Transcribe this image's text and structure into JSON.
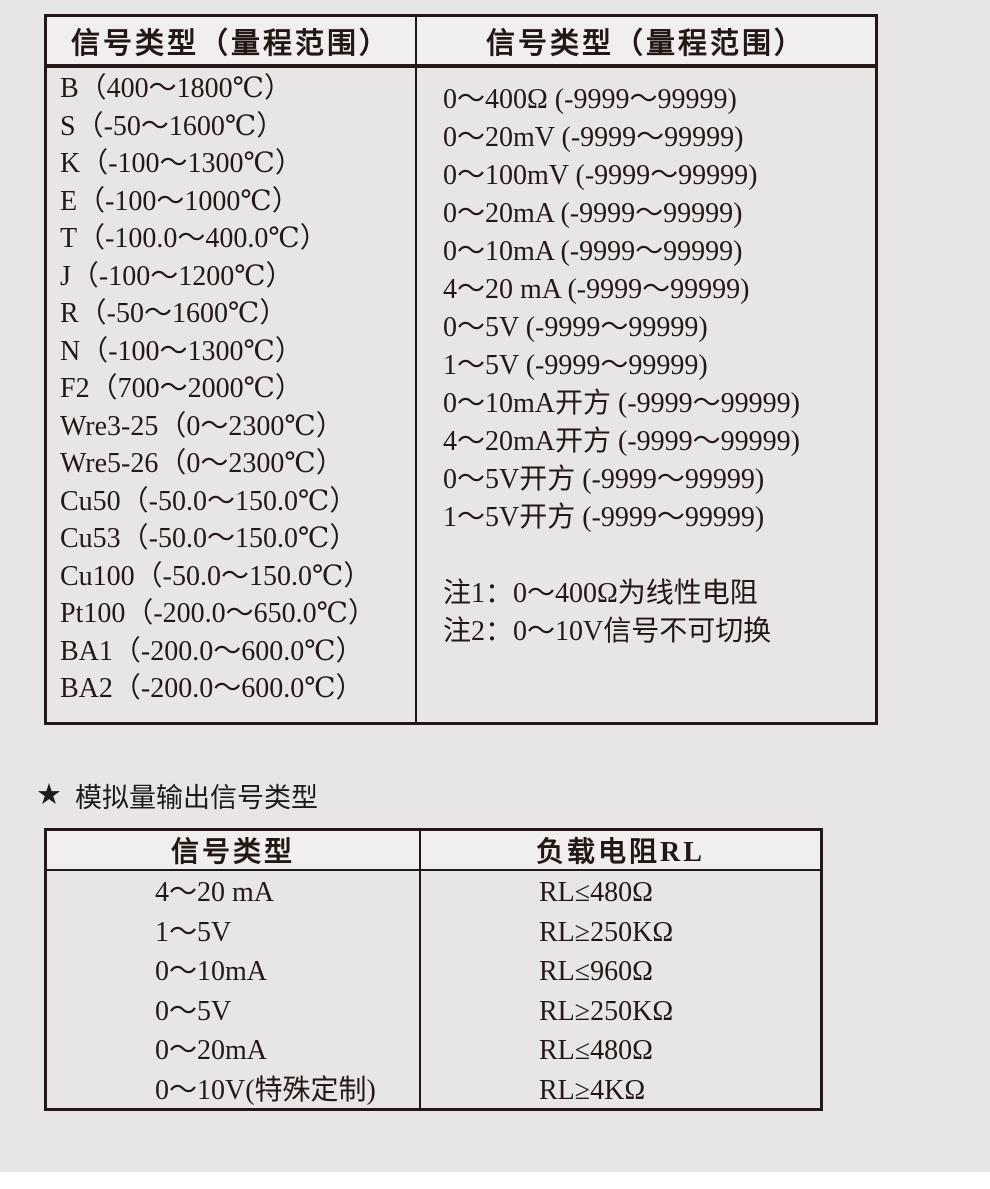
{
  "colors": {
    "page_bg": "#e7e6e5",
    "header_bg": "#f0efee",
    "border": "#231815",
    "text": "#231815"
  },
  "table1": {
    "header_left": "信号类型（量程范围）",
    "header_right": "信号类型（量程范围）",
    "left_rows": [
      "B（400～1800℃）",
      "S（-50～1600℃）",
      "K（-100～1300℃）",
      "E（-100～1000℃）",
      "T（-100.0～400.0℃）",
      "J（-100～1200℃）",
      "R（-50～1600℃）",
      "N（-100～1300℃）",
      "F2（700～2000℃）",
      "Wre3-25（0～2300℃）",
      "Wre5-26（0～2300℃）",
      "Cu50（-50.0～150.0℃）",
      "Cu53（-50.0～150.0℃）",
      "Cu100（-50.0～150.0℃）",
      "Pt100（-200.0～650.0℃）",
      "BA1（-200.0～600.0℃）",
      "BA2（-200.0～600.0℃）"
    ],
    "right_rows": [
      "0～400Ω (-9999～99999)",
      "0～20mV (-9999～99999)",
      "0～100mV (-9999～99999)",
      "0～20mA (-9999～99999)",
      "0～10mA (-9999～99999)",
      "4～20 mA (-9999～99999)",
      "0～5V (-9999～99999)",
      "1～5V (-9999～99999)",
      "0～10mA开方 (-9999～99999)",
      "4～20mA开方 (-9999～99999)",
      "0～5V开方 (-9999～99999)",
      "1～5V开方 (-9999～99999)"
    ],
    "notes": [
      "注1：0～400Ω为线性电阻",
      "注2：0～10V信号不可切换"
    ]
  },
  "star_heading": {
    "star": "★",
    "text": "模拟量输出信号类型"
  },
  "table2": {
    "header_signal": "信号类型",
    "header_load": "负载电阻RL",
    "rows": [
      {
        "signal": "4～20 mA",
        "load": "RL≤480Ω"
      },
      {
        "signal": "1～5V",
        "load": "RL≥250KΩ"
      },
      {
        "signal": "0～10mA",
        "load": "RL≤960Ω"
      },
      {
        "signal": "0～5V",
        "load": "RL≥250KΩ"
      },
      {
        "signal": "0～20mA",
        "load": "RL≤480Ω"
      },
      {
        "signal": "0～10V(特殊定制)",
        "load": "RL≥4KΩ"
      }
    ]
  }
}
